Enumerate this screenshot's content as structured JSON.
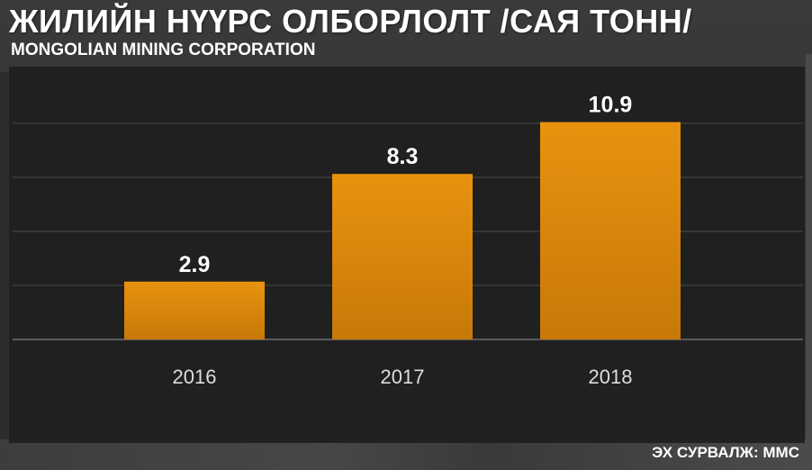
{
  "header": {
    "title": "ЖИЛИЙН НҮҮРС ОЛБОРЛОЛТ /САЯ ТОНН/",
    "subtitle": "MONGOLIAN MINING CORPORATION"
  },
  "footer": {
    "source": "ЭХ СУРВАЛЖ: MMC"
  },
  "colors": {
    "bar_top": "#e8920f",
    "bar_bottom": "#c77908",
    "panel": "#1e1e1e",
    "gridline": "#4a4a4a",
    "text": "#ffffff",
    "tick_text": "#dddddd"
  },
  "chart_data": {
    "type": "bar",
    "title": "ЖИЛИЙН НҮҮРС ОЛБОРЛОЛТ /САЯ ТОНН/",
    "subtitle": "MONGOLIAN MINING CORPORATION",
    "categories": [
      "2016",
      "2017",
      "2018"
    ],
    "values": [
      2.9,
      8.3,
      10.9
    ],
    "data_labels": [
      "2.9",
      "8.3",
      "10.9"
    ],
    "xlabel": "",
    "ylabel": "",
    "ylim": [
      0,
      13.5
    ],
    "grid": true,
    "legend": "none"
  }
}
